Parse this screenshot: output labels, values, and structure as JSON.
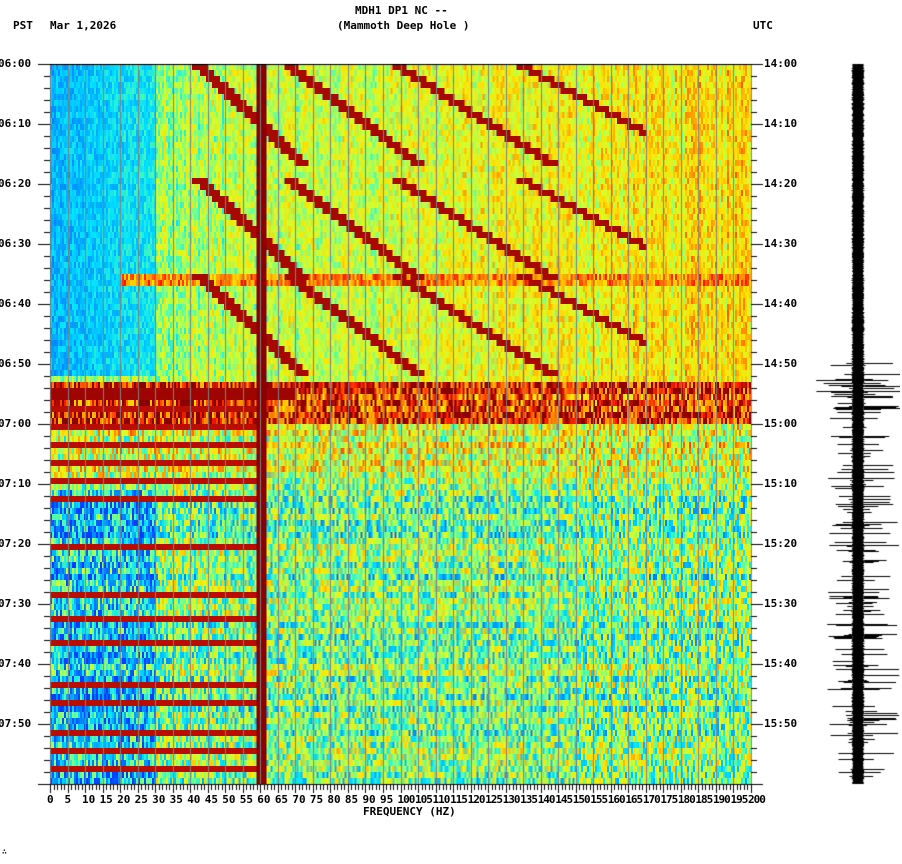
{
  "header": {
    "station_line": "MDH1 DP1 NC --",
    "location_line": "(Mammoth Deep Hole )",
    "left_timezone": "PST",
    "date": "Mar 1,2026",
    "right_timezone": "UTC"
  },
  "footer": {
    "mark": "∴"
  },
  "chart_data": {
    "type": "heatmap",
    "title": "MDH1 DP1 NC -- (Mammoth Deep Hole )",
    "subtitle": "Mar 1,2026",
    "xlabel": "FREQUENCY (HZ)",
    "ylabel_left": "PST",
    "ylabel_right": "UTC",
    "xlim": [
      0,
      200
    ],
    "x_ticks": [
      0,
      5,
      10,
      15,
      20,
      25,
      30,
      35,
      40,
      45,
      50,
      55,
      60,
      65,
      70,
      75,
      80,
      85,
      90,
      95,
      100,
      105,
      110,
      115,
      120,
      125,
      130,
      135,
      140,
      145,
      150,
      155,
      160,
      165,
      170,
      175,
      180,
      185,
      190,
      195,
      200
    ],
    "y_ticks_left": [
      "06:00",
      "06:10",
      "06:20",
      "06:30",
      "06:40",
      "06:50",
      "07:00",
      "07:10",
      "07:20",
      "07:30",
      "07:40",
      "07:50"
    ],
    "y_ticks_right": [
      "14:00",
      "14:10",
      "14:20",
      "14:30",
      "14:40",
      "14:50",
      "15:00",
      "15:10",
      "15:20",
      "15:30",
      "15:40",
      "15:50"
    ],
    "time_range_minutes": 120,
    "colormap": [
      "#0040ff",
      "#0090ff",
      "#00e0ff",
      "#60ffa0",
      "#d0ff30",
      "#ffe000",
      "#ff9000",
      "#ff2000",
      "#8b0000"
    ],
    "persistent_line_hz": 60,
    "vertical_gridlines_hz_step": 5,
    "features": {
      "quiet_low_freq_region": {
        "max_hz": 30,
        "end_minute": 52
      },
      "sweep_groups_start_minutes": [
        0,
        19,
        35
      ],
      "strong_event_minutes": [
        53,
        56
      ],
      "broadband_bursts_minutes": [
        54,
        57,
        60,
        63,
        66,
        69,
        72,
        80,
        88,
        92,
        96,
        103,
        106,
        111,
        114,
        117
      ]
    },
    "seismogram": {
      "trace_label": "waveform",
      "event_onset_minute": 52
    }
  }
}
